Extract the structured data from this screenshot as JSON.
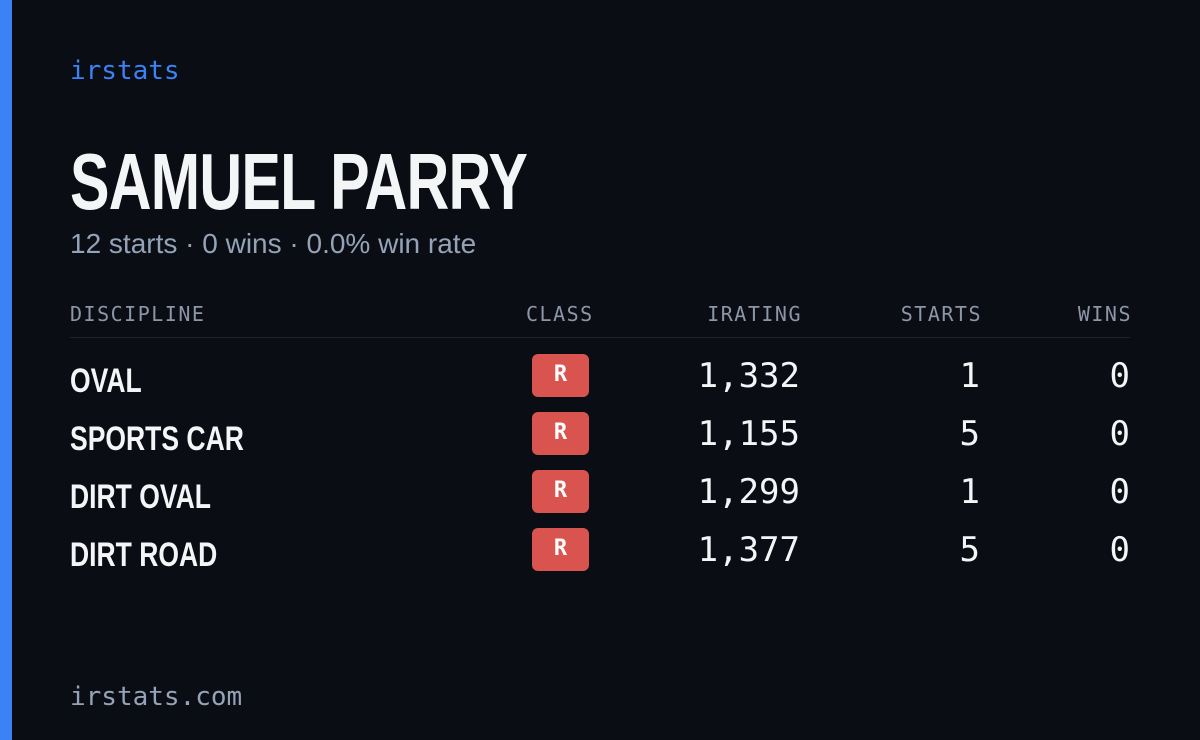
{
  "brand": "irstats",
  "header": {
    "title": "SAMUEL PARRY",
    "subtitle": "12 starts · 0 wins · 0.0% win rate"
  },
  "table": {
    "headers": [
      "DISCIPLINE",
      "CLASS",
      "IRATING",
      "STARTS",
      "WINS"
    ],
    "rows": [
      [
        "OVAL",
        "R",
        "1,332",
        "1",
        "0"
      ],
      [
        "SPORTS CAR",
        "R",
        "1,155",
        "5",
        "0"
      ],
      [
        "DIRT OVAL",
        "R",
        "1,299",
        "1",
        "0"
      ],
      [
        "DIRT ROAD",
        "R",
        "1,377",
        "5",
        "0"
      ]
    ]
  },
  "footer": "irstats.com"
}
